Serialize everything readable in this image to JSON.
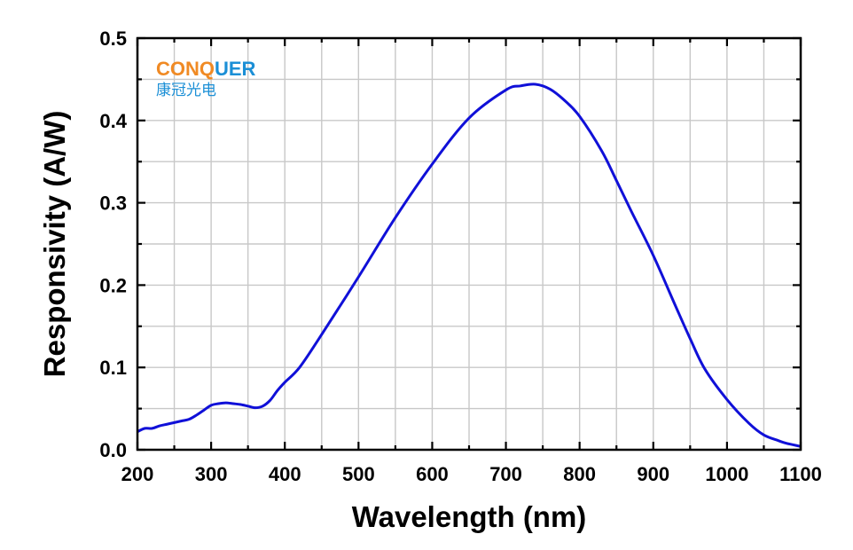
{
  "logo": {
    "text_orange": "CONQ",
    "text_blue": "UER",
    "text_cn": "康冠光电",
    "orange": "#F08A24",
    "blue": "#1B8FD6"
  },
  "chart_data": {
    "type": "line",
    "title": "",
    "xlabel": "Wavelength (nm)",
    "ylabel": "Responsivity (A/W)",
    "xlim": [
      200,
      1100
    ],
    "ylim": [
      0,
      0.5
    ],
    "xticks": [
      200,
      300,
      400,
      500,
      600,
      700,
      800,
      900,
      1000,
      1100
    ],
    "xtick_labels": [
      "200",
      "300",
      "400",
      "500",
      "600",
      "700",
      "800",
      "900",
      "1000",
      "1100"
    ],
    "yticks": [
      0,
      0.1,
      0.2,
      0.3,
      0.4,
      0.5
    ],
    "ytick_labels": [
      "0.0",
      "0.1",
      "0.2",
      "0.3",
      "0.4",
      "0.5"
    ],
    "grid": true,
    "line_color": "#1010D8",
    "series": [
      {
        "x": [
          200,
          210,
          220,
          230,
          240,
          250,
          260,
          270,
          280,
          290,
          300,
          310,
          320,
          330,
          340,
          350,
          360,
          370,
          380,
          390,
          400,
          420,
          450,
          500,
          550,
          600,
          650,
          700,
          720,
          740,
          760,
          780,
          800,
          830,
          850,
          870,
          900,
          930,
          950,
          970,
          1000,
          1030,
          1050,
          1070,
          1080,
          1090,
          1100
        ],
        "y": [
          0.022,
          0.026,
          0.026,
          0.029,
          0.031,
          0.033,
          0.035,
          0.037,
          0.042,
          0.048,
          0.054,
          0.056,
          0.057,
          0.056,
          0.055,
          0.053,
          0.051,
          0.053,
          0.06,
          0.072,
          0.082,
          0.1,
          0.14,
          0.21,
          0.282,
          0.347,
          0.403,
          0.437,
          0.442,
          0.444,
          0.438,
          0.424,
          0.405,
          0.363,
          0.327,
          0.29,
          0.236,
          0.175,
          0.135,
          0.098,
          0.061,
          0.032,
          0.018,
          0.011,
          0.008,
          0.006,
          0.004
        ]
      }
    ]
  }
}
